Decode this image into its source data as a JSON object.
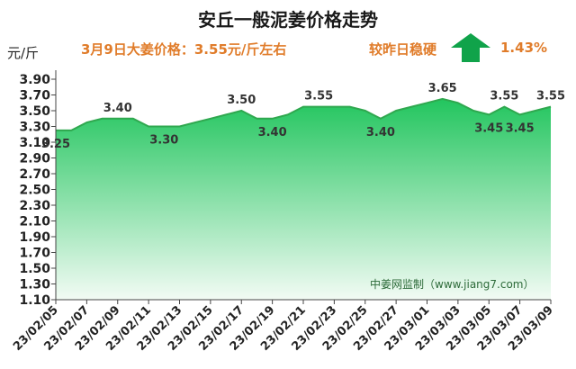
{
  "header": {
    "title": "安丘一般泥姜价格走势",
    "unit": "元/斤",
    "price_note": "3月9日大姜价格：3.55元/斤左右",
    "trend_text": "较昨日稳硬",
    "change_pct": "1.43%",
    "trend_icon": "up-arrow-icon"
  },
  "watermark": "中姜网监制（www.jiang7.com）",
  "colors": {
    "area_top": "#22c55e",
    "area_bottom": "#f2fbf4",
    "line": "#2fa84f",
    "accent_text": "#e07c2a",
    "arrow": "#10a34a"
  },
  "chart_data": {
    "type": "area",
    "title": "安丘一般泥姜价格走势",
    "ylabel": "元/斤",
    "xlabel": "",
    "ylim": [
      1.1,
      3.9
    ],
    "yticks": [
      "3.90",
      "3.70",
      "3.50",
      "3.30",
      "3.10",
      "2.90",
      "2.70",
      "2.50",
      "2.30",
      "2.10",
      "1.90",
      "1.70",
      "1.50",
      "1.30",
      "1.10"
    ],
    "xticks": [
      "23/02/05",
      "23/02/07",
      "23/02/09",
      "23/02/11",
      "23/02/13",
      "23/02/15",
      "23/02/17",
      "23/02/19",
      "23/02/21",
      "23/02/23",
      "23/02/25",
      "23/02/27",
      "23/03/01",
      "23/03/03",
      "23/03/05",
      "23/03/07",
      "23/03/09"
    ],
    "x": [
      "23/02/05",
      "23/02/06",
      "23/02/07",
      "23/02/08",
      "23/02/09",
      "23/02/10",
      "23/02/11",
      "23/02/12",
      "23/02/13",
      "23/02/14",
      "23/02/15",
      "23/02/16",
      "23/02/17",
      "23/02/18",
      "23/02/19",
      "23/02/20",
      "23/02/21",
      "23/02/22",
      "23/02/23",
      "23/02/24",
      "23/02/25",
      "23/02/26",
      "23/02/27",
      "23/02/28",
      "23/03/01",
      "23/03/02",
      "23/03/03",
      "23/03/04",
      "23/03/05",
      "23/03/06",
      "23/03/07",
      "23/03/08",
      "23/03/09"
    ],
    "values": [
      3.25,
      3.25,
      3.35,
      3.4,
      3.4,
      3.4,
      3.3,
      3.3,
      3.3,
      3.35,
      3.4,
      3.45,
      3.5,
      3.4,
      3.4,
      3.45,
      3.55,
      3.55,
      3.55,
      3.55,
      3.5,
      3.4,
      3.5,
      3.55,
      3.6,
      3.65,
      3.6,
      3.5,
      3.45,
      3.55,
      3.45,
      3.5,
      3.55
    ],
    "data_labels": [
      {
        "x": "23/02/05",
        "text": "3.25",
        "pos": "below"
      },
      {
        "x": "23/02/09",
        "text": "3.40",
        "pos": "above"
      },
      {
        "x": "23/02/12",
        "text": "3.30",
        "pos": "below"
      },
      {
        "x": "23/02/17",
        "text": "3.50",
        "pos": "above"
      },
      {
        "x": "23/02/19",
        "text": "3.40",
        "pos": "below"
      },
      {
        "x": "23/02/22",
        "text": "3.55",
        "pos": "above"
      },
      {
        "x": "23/02/26",
        "text": "3.40",
        "pos": "below"
      },
      {
        "x": "23/03/02",
        "text": "3.65",
        "pos": "above"
      },
      {
        "x": "23/03/05",
        "text": "3.45",
        "pos": "below"
      },
      {
        "x": "23/03/06",
        "text": "3.55",
        "pos": "above"
      },
      {
        "x": "23/03/07",
        "text": "3.45",
        "pos": "below"
      },
      {
        "x": "23/03/09",
        "text": "3.55",
        "pos": "above"
      }
    ],
    "grid": false,
    "legend": "none"
  }
}
